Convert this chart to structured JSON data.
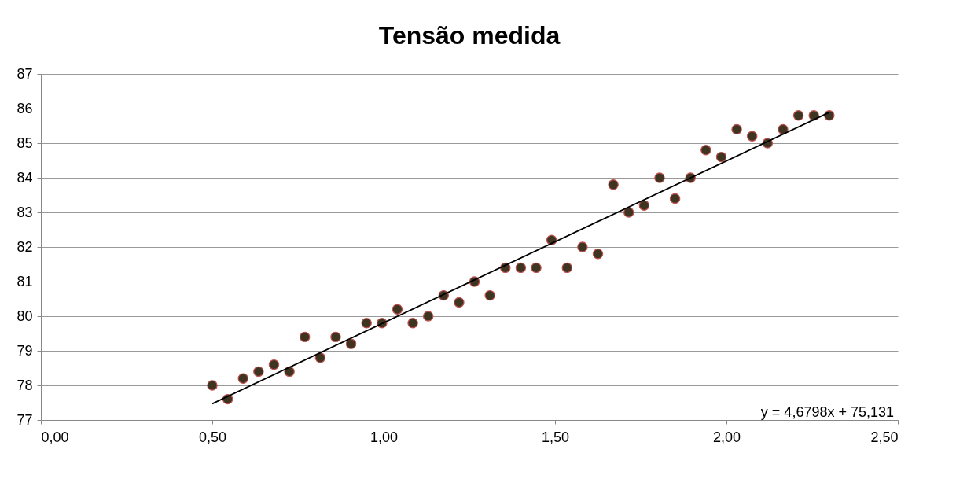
{
  "chart_data": {
    "type": "scatter",
    "title": "Tensão medida",
    "x": [
      0.5,
      0.545,
      0.59,
      0.635,
      0.68,
      0.725,
      0.77,
      0.815,
      0.86,
      0.905,
      0.95,
      0.995,
      1.04,
      1.085,
      1.13,
      1.175,
      1.22,
      1.265,
      1.31,
      1.355,
      1.4,
      1.445,
      1.49,
      1.535,
      1.58,
      1.625,
      1.67,
      1.715,
      1.76,
      1.805,
      1.85,
      1.895,
      1.94,
      1.985,
      2.03,
      2.075,
      2.12,
      2.165,
      2.21,
      2.255,
      2.3
    ],
    "series": [
      {
        "color": "#3d3522",
        "marker": "circle",
        "values": [
          78.0,
          77.6,
          78.2,
          78.4,
          78.6,
          78.4,
          79.4,
          78.8,
          79.4,
          79.2,
          79.8,
          79.8,
          80.2,
          79.8,
          80.0,
          80.6,
          80.4,
          81.0,
          80.6,
          81.4,
          81.4,
          81.4,
          82.2,
          81.4,
          82.0,
          81.8,
          83.8,
          83.0,
          83.2,
          84.0,
          83.4,
          84.0,
          84.8,
          84.6,
          85.4,
          85.2,
          85.0,
          85.4,
          85.8,
          85.8,
          85.8
        ]
      },
      {
        "type": "line",
        "marker": "none",
        "color": "#000000",
        "x": [
          0.5,
          2.3
        ],
        "values": [
          77.47,
          85.89
        ]
      }
    ],
    "annotations": [
      {
        "text": "y = 4,6798x + 75,131"
      }
    ],
    "xlim": [
      0,
      2.5
    ],
    "ylim": [
      77,
      87
    ],
    "xticks": [
      {
        "value": 0,
        "label": "0,00"
      },
      {
        "value": 0.5,
        "label": "0,50"
      },
      {
        "value": 1,
        "label": "1,00"
      },
      {
        "value": 1.5,
        "label": "1,50"
      },
      {
        "value": 2,
        "label": "2,00"
      },
      {
        "value": 2.5,
        "label": "2,50"
      }
    ],
    "yticks": [
      77,
      78,
      79,
      80,
      81,
      82,
      83,
      84,
      85,
      86,
      87
    ],
    "grid": "y"
  }
}
